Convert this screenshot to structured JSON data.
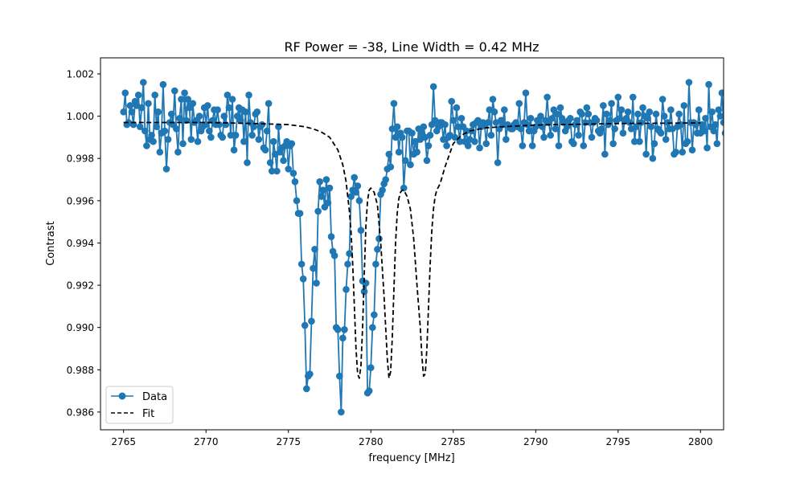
{
  "chart_data": {
    "type": "line",
    "title": "RF Power = -38, Line Width = 0.42 MHz",
    "xlabel": "frequency [MHz]",
    "ylabel": "Contrast",
    "xlim": [
      2763.6,
      2801.4
    ],
    "ylim": [
      0.98516,
      1.00276
    ],
    "xticks": [
      2765,
      2770,
      2775,
      2780,
      2785,
      2790,
      2795,
      2800
    ],
    "xtick_labels": [
      "2765",
      "2770",
      "2775",
      "2780",
      "2785",
      "2790",
      "2795",
      "2800"
    ],
    "yticks": [
      0.986,
      0.988,
      0.99,
      0.992,
      0.994,
      0.996,
      0.998,
      1.0,
      1.002
    ],
    "ytick_labels": [
      "0.986",
      "0.988",
      "0.990",
      "0.992",
      "0.994",
      "0.996",
      "0.998",
      "1.000",
      "1.002"
    ],
    "grid": false,
    "legend_position": "lower-left",
    "series": [
      {
        "name": "Data",
        "style": "line-with-circle-markers",
        "color": "#1f77b4",
        "x_start": 2765,
        "x_step": 0.1,
        "values": [
          1.0002,
          1.0011,
          0.9996,
          0.9997,
          1.0005,
          1.0002,
          0.9996,
          1.0007,
          1.0005,
          1.001,
          0.9995,
          1.0004,
          1.0016,
          0.9993,
          0.9986,
          1.0006,
          0.9989,
          0.9991,
          0.9988,
          1.001,
          0.9995,
          1.0002,
          0.9983,
          0.9992,
          1.0015,
          0.9993,
          0.9975,
          0.9989,
          0.9997,
          1.0001,
          0.9996,
          1.0012,
          0.9994,
          0.9983,
          0.9999,
          1.0008,
          0.9987,
          1.0011,
          0.9998,
          1.0008,
          1.0004,
          0.9989,
          1.0006,
          0.9997,
          0.9998,
          0.9988,
          1.0,
          0.9993,
          0.9995,
          1.0004,
          0.9996,
          1.0005,
          0.9993,
          0.999,
          0.9998,
          1.0003,
          0.9996,
          1.0003,
          0.9996,
          0.9991,
          0.999,
          1.0,
          0.9996,
          1.001,
          1.0004,
          0.9991,
          1.0008,
          0.9984,
          0.9991,
          1.0,
          1.0004,
          0.9998,
          1.0003,
          0.9988,
          1.0002,
          0.9978,
          1.001,
          0.9997,
          0.9991,
          0.9995,
          1.0001,
          1.0002,
          0.9989,
          0.9995,
          0.9996,
          0.9985,
          0.9984,
          0.9993,
          1.0006,
          0.9978,
          0.9974,
          0.9988,
          0.9982,
          0.9974,
          0.9995,
          0.9983,
          0.9985,
          0.9979,
          0.9986,
          0.9988,
          0.9975,
          0.9986,
          0.9987,
          0.9973,
          0.9969,
          0.996,
          0.9954,
          0.9954,
          0.993,
          0.9923,
          0.9901,
          0.9871,
          0.9877,
          0.9878,
          0.9903,
          0.9928,
          0.9937,
          0.9921,
          0.9955,
          0.9969,
          0.9962,
          0.9965,
          0.9957,
          0.997,
          0.9959,
          0.9966,
          0.9943,
          0.9936,
          0.9934,
          0.99,
          0.9899,
          0.9877,
          0.986,
          0.9895,
          0.9899,
          0.9918,
          0.993,
          0.9935,
          0.9962,
          0.9965,
          0.9971,
          0.9964,
          0.9967,
          0.996,
          0.9946,
          0.9922,
          0.9917,
          0.9921,
          0.9869,
          0.987,
          0.9881,
          0.99,
          0.9906,
          0.993,
          0.9937,
          0.9942,
          0.9963,
          0.9965,
          0.9968,
          0.997,
          0.9975,
          0.9982,
          0.9976,
          0.9994,
          1.0006,
          0.999,
          0.9995,
          0.9983,
          0.9992,
          0.999,
          0.9966,
          0.9979,
          0.9993,
          0.9993,
          0.9977,
          0.9992,
          0.9982,
          0.9988,
          0.9983,
          0.9994,
          0.9989,
          0.9992,
          0.9995,
          0.999,
          0.9979,
          0.9986,
          0.9991,
          0.9996,
          1.0014,
          0.9998,
          0.9993,
          0.9995,
          0.9997,
          0.9997,
          0.9989,
          0.9996,
          0.9986,
          0.999,
          0.9991,
          1.0007,
          0.9998,
          0.999,
          1.0004,
          0.9995,
          0.9988,
          0.9999,
          0.9995,
          0.9988,
          0.9993,
          0.9986,
          0.9989,
          0.9993,
          0.9996,
          0.9988,
          0.9997,
          0.9998,
          0.9985,
          0.9995,
          0.9997,
          0.9996,
          0.9987,
          0.9997,
          1.0003,
          0.9991,
          1.0008,
          1.0002,
          0.9997,
          0.9978,
          0.9994,
          0.9998,
          0.9996,
          1.0003,
          0.9989,
          0.9996,
          0.9995,
          0.9994,
          0.9994,
          0.9996,
          0.9997,
          0.9995,
          1.0006,
          0.9994,
          0.9986,
          0.9997,
          1.0011,
          0.9996,
          0.9993,
          0.9999,
          0.9986,
          0.9993,
          0.9995,
          0.9998,
          0.9996,
          1.0,
          0.9995,
          0.999,
          0.9998,
          1.0009,
          0.9997,
          0.9991,
          0.9999,
          1.0003,
          0.9994,
          1.0001,
          0.9986,
          1.0004,
          0.9999,
          0.9997,
          0.9993,
          0.9995,
          0.9998,
          0.9999,
          0.9988,
          0.9987,
          0.9996,
          0.9998,
          0.9991,
          1.0002,
          1.0001,
          0.9986,
          0.9997,
          1.0004,
          1.0001,
          0.9997,
          0.999,
          0.9997,
          0.9999,
          0.9998,
          0.9993,
          0.9992,
          0.9994,
          1.0005,
          0.9982,
          1.0001,
          0.9996,
          0.9998,
          1.0006,
          0.9987,
          0.9994,
          0.9998,
          1.0009,
          0.9999,
          1.0003,
          0.9992,
          0.9998,
          0.9999,
          1.0002,
          0.9997,
          0.9994,
          1.0009,
          0.9988,
          0.9995,
          1.0001,
          0.9988,
          0.9997,
          1.0004,
          1.0,
          0.9982,
          0.9999,
          1.0002,
          0.9995,
          0.998,
          0.9987,
          1.0001,
          0.9994,
          0.9993,
          0.9992,
          1.0008,
          1.0,
          0.9989,
          0.9997,
          0.9994,
          1.0003,
          0.9994,
          0.9982,
          0.9983,
          0.9995,
          1.0001,
          0.9996,
          0.9983,
          1.0005,
          0.9987,
          0.9988,
          1.0016,
          0.9997,
          0.9984,
          0.9997,
          0.9996,
          0.9992,
          1.0003,
          0.9992,
          0.9996,
          0.9993,
          0.9999,
          0.9985,
          1.0015,
          0.9995,
          1.0002,
          0.9993,
          0.9996,
          0.9987,
          1.0003,
          1.0,
          1.0011,
          0.9997,
          0.9992,
          0.9992,
          1.0008,
          0.9997,
          0.9995,
          0.9998,
          0.9992,
          1.0008,
          1.0,
          0.9999,
          1.0004,
          1.0001,
          0.9992
        ]
      },
      {
        "name": "Fit",
        "style": "dashed-line",
        "color": "#000000",
        "x": [
          2765.0,
          2770.0,
          2773.0,
          2775.0,
          2776.0,
          2776.5,
          2777.0,
          2777.5,
          2778.0,
          2778.3,
          2778.5,
          2778.7,
          2778.8,
          2778.9,
          2779.0,
          2779.1,
          2779.2,
          2779.3,
          2779.4,
          2779.5,
          2779.6,
          2779.7,
          2779.8,
          2779.9,
          2780.0,
          2780.2,
          2780.4,
          2780.6,
          2780.8,
          2780.9,
          2781.0,
          2781.1,
          2781.2,
          2781.3,
          2781.4,
          2781.5,
          2781.6,
          2781.7,
          2781.8,
          2781.9,
          2782.0,
          2782.2,
          2782.4,
          2782.6,
          2782.8,
          2783.0,
          2783.1,
          2783.2,
          2783.3,
          2783.4,
          2783.5,
          2783.6,
          2783.7,
          2783.8,
          2783.9,
          2784.0,
          2784.2,
          2784.5,
          2785.0,
          2785.5,
          2786.0,
          2787.0,
          2788.0,
          2790.0,
          2795.0,
          2800.0
        ],
        "values": [
          0.9997,
          0.9997,
          0.99965,
          0.9996,
          0.9995,
          0.9994,
          0.99925,
          0.999,
          0.9984,
          0.9977,
          0.9969,
          0.9955,
          0.9945,
          0.993,
          0.991,
          0.989,
          0.9878,
          0.9876,
          0.9882,
          0.99,
          0.9925,
          0.9948,
          0.996,
          0.9965,
          0.9966,
          0.9964,
          0.9958,
          0.994,
          0.9915,
          0.99,
          0.9885,
          0.9876,
          0.9879,
          0.9895,
          0.9918,
          0.994,
          0.9954,
          0.9961,
          0.9964,
          0.9965,
          0.9965,
          0.9962,
          0.9956,
          0.9942,
          0.992,
          0.99,
          0.9886,
          0.9877,
          0.9878,
          0.989,
          0.991,
          0.993,
          0.9946,
          0.9956,
          0.9962,
          0.9965,
          0.9968,
          0.9976,
          0.9987,
          0.9991,
          0.9993,
          0.99945,
          0.9995,
          0.99958,
          0.99965,
          0.99968
        ]
      }
    ]
  }
}
